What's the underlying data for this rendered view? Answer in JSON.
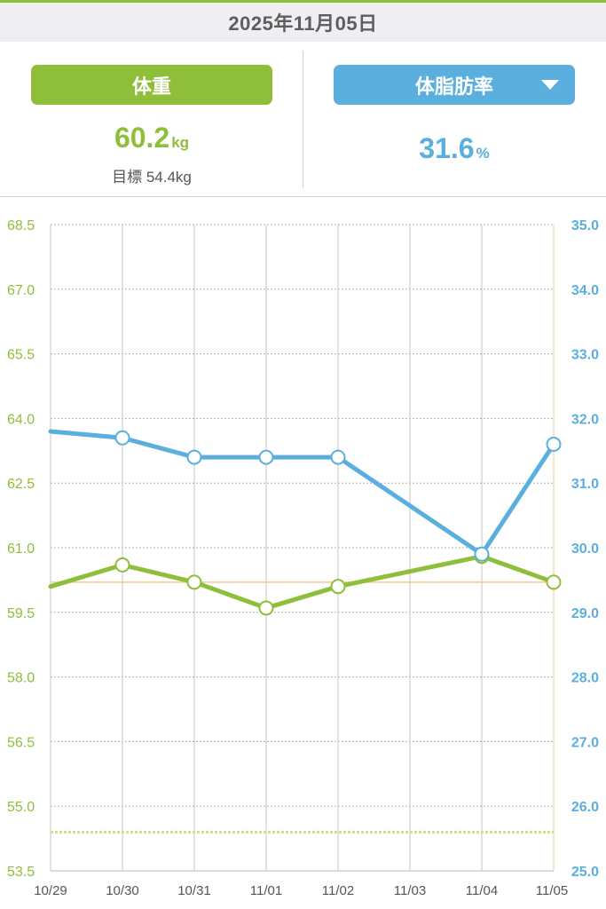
{
  "header": {
    "date": "2025年11月05日"
  },
  "weight_panel": {
    "label": "体重",
    "value": "60.2",
    "unit": "kg",
    "goal_label": "目標",
    "goal_value": "54.4kg"
  },
  "fat_panel": {
    "label": "体脂肪率",
    "value": "31.6",
    "unit": "%",
    "dropdown_icon": "caret-down-icon"
  },
  "colors": {
    "weight": "#8fbe3a",
    "fat": "#5aafde",
    "goal_line": "#c9e08f",
    "target_line": "#f2c79a",
    "date_bar_bg": "#efeff3"
  },
  "chart_data": {
    "type": "line",
    "x": [
      "10/29",
      "10/30",
      "10/31",
      "11/01",
      "11/02",
      "11/03",
      "11/04",
      "11/05"
    ],
    "y_left": {
      "lim": [
        53.5,
        68.5
      ],
      "ticks": [
        "53.5",
        "55.0",
        "56.5",
        "58.0",
        "59.5",
        "61.0",
        "62.5",
        "64.0",
        "65.5",
        "67.0",
        "68.5"
      ]
    },
    "y_right": {
      "lim": [
        25.0,
        35.0
      ],
      "ticks": [
        "25.0",
        "26.0",
        "27.0",
        "28.0",
        "29.0",
        "30.0",
        "31.0",
        "32.0",
        "33.0",
        "34.0",
        "35.0"
      ]
    },
    "series": [
      {
        "axis": "left",
        "color": "#8fbe3a",
        "points": [
          {
            "x": "10/29",
            "y": 60.1,
            "marker": false
          },
          {
            "x": "10/30",
            "y": 60.6
          },
          {
            "x": "10/31",
            "y": 60.2
          },
          {
            "x": "11/01",
            "y": 59.6
          },
          {
            "x": "11/02",
            "y": 60.1
          },
          {
            "x": "11/04",
            "y": 60.8
          },
          {
            "x": "11/05",
            "y": 60.2
          }
        ]
      },
      {
        "axis": "right",
        "color": "#5aafde",
        "points": [
          {
            "x": "10/29",
            "y": 31.8,
            "marker": false
          },
          {
            "x": "10/30",
            "y": 31.7
          },
          {
            "x": "10/31",
            "y": 31.4
          },
          {
            "x": "11/01",
            "y": 31.4
          },
          {
            "x": "11/02",
            "y": 31.4
          },
          {
            "x": "11/04",
            "y": 29.9
          },
          {
            "x": "11/05",
            "y": 31.6
          }
        ]
      }
    ],
    "reference_lines": [
      {
        "axis": "left",
        "y": 60.2,
        "style": "solid",
        "color": "#f2c79a"
      },
      {
        "axis": "left",
        "y": 54.4,
        "style": "dotted",
        "color": "#c9e08f"
      }
    ],
    "grid": true
  }
}
